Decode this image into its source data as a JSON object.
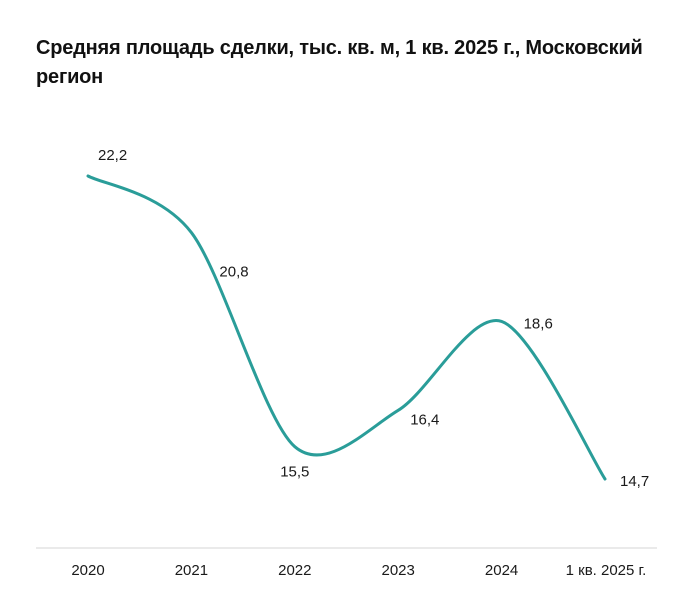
{
  "chart_data": {
    "type": "line",
    "title": "Средняя площадь сделки, тыс. кв. м, 1 кв. 2025 г., Московский регион",
    "categories": [
      "2020",
      "2021",
      "2022",
      "2023",
      "2024",
      "1 кв. 2025 г."
    ],
    "series": [
      {
        "name": "Средняя площадь сделки",
        "values": [
          22.2,
          20.8,
          15.5,
          16.4,
          18.6,
          14.7
        ],
        "labels": [
          "22,2",
          "20,8",
          "15,5",
          "16,4",
          "18,6",
          "14,7"
        ]
      }
    ],
    "xlabel": "",
    "ylabel": "",
    "ylim": [
      14.0,
      22.5
    ],
    "grid": false,
    "legend": "none",
    "line_color": "#2a9d99",
    "axis_color": "#d6d6d6"
  }
}
